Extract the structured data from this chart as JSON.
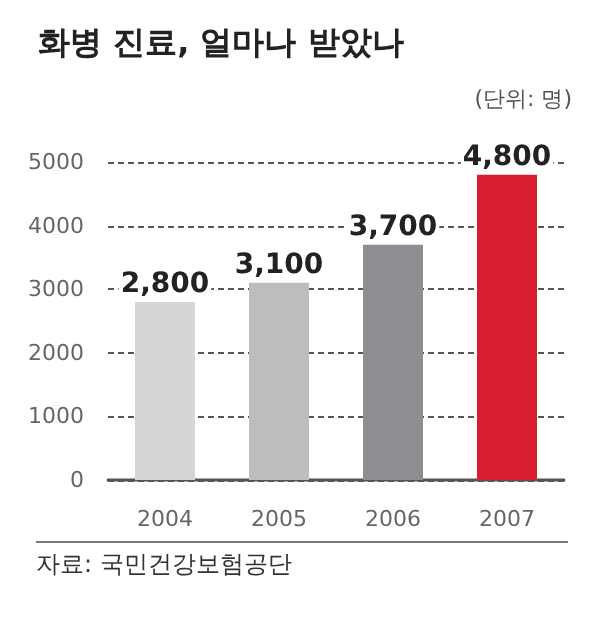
{
  "chart_data": {
    "type": "bar",
    "title": "화병 진료, 얼마나 받았나",
    "ylabel": "(단위: 명)",
    "categories": [
      "2004",
      "2005",
      "2006",
      "2007"
    ],
    "values": [
      2800,
      3100,
      3700,
      4800
    ],
    "colors": [
      "#d5d6d8",
      "#bcbdbf",
      "#8c8e91",
      "#d71f30"
    ],
    "value_labels": [
      "2,800",
      "3,100",
      "3,700",
      "4,800"
    ],
    "ylim": [
      0,
      5000
    ],
    "yticks": [
      0,
      1000,
      2000,
      3000,
      4000,
      5000
    ],
    "grid": "y",
    "annotations": [
      "자료: 국민건강보험공단"
    ]
  }
}
